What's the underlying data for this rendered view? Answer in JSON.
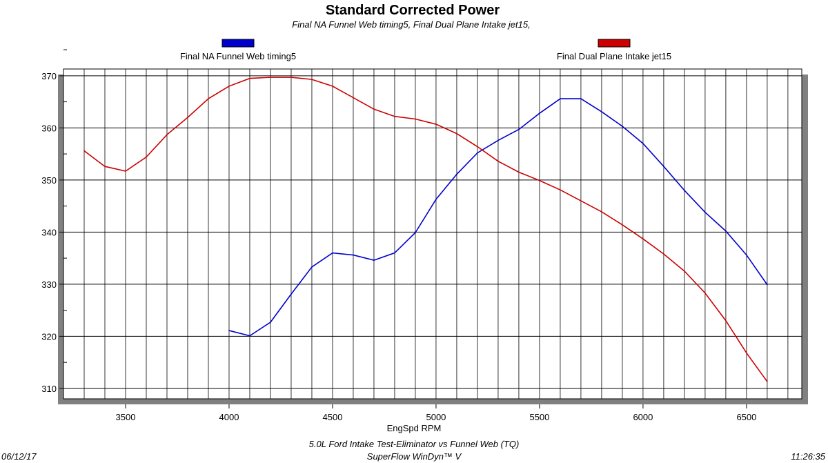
{
  "chart_data": {
    "type": "line",
    "title": "Standard Corrected Power",
    "subtitle": "Final NA Funnel Web timing5, Final Dual Plane Intake jet15,",
    "xlabel": "EngSpd RPM",
    "ylabel": "",
    "xlim": [
      3200,
      6767
    ],
    "ylim": [
      308,
      371.3
    ],
    "xticks": [
      3500,
      4000,
      4500,
      5000,
      5500,
      6000,
      6500
    ],
    "yticks": [
      310,
      320,
      330,
      340,
      350,
      360,
      370
    ],
    "grid": true,
    "legend_placement": "top",
    "series": [
      {
        "name": "Final NA Funnel Web timing5",
        "color": "#0000cc",
        "x": [
          4000,
          4100,
          4200,
          4300,
          4400,
          4500,
          4600,
          4700,
          4800,
          4900,
          5000,
          5100,
          5200,
          5300,
          5400,
          5500,
          5600,
          5700,
          5800,
          5900,
          6000,
          6100,
          6200,
          6300,
          6400,
          6500,
          6600
        ],
        "y": [
          321.1,
          320.1,
          322.7,
          328.1,
          333.3,
          336.0,
          335.6,
          334.6,
          336.0,
          339.9,
          346.3,
          351.1,
          355.2,
          357.6,
          359.7,
          362.8,
          365.6,
          365.6,
          363.1,
          360.3,
          357.0,
          352.6,
          348.0,
          343.8,
          340.2,
          335.6,
          329.9
        ]
      },
      {
        "name": "Final Dual Plane Intake jet15",
        "color": "#cc0000",
        "x": [
          3300,
          3400,
          3500,
          3600,
          3700,
          3800,
          3900,
          4000,
          4100,
          4200,
          4300,
          4400,
          4500,
          4600,
          4700,
          4800,
          4900,
          5000,
          5100,
          5200,
          5300,
          5400,
          5500,
          5600,
          5700,
          5800,
          5900,
          6000,
          6100,
          6200,
          6300,
          6400,
          6500,
          6600
        ],
        "y": [
          355.6,
          352.6,
          351.7,
          354.4,
          358.7,
          362.0,
          365.6,
          368.0,
          369.5,
          369.7,
          369.7,
          369.3,
          368.0,
          365.8,
          363.6,
          362.2,
          361.7,
          360.7,
          358.9,
          356.4,
          353.6,
          351.5,
          349.9,
          348.1,
          346.0,
          343.9,
          341.4,
          338.7,
          335.8,
          332.5,
          328.3,
          323.0,
          316.8,
          311.3
        ]
      }
    ]
  },
  "footer": {
    "description": "5.0L Ford Intake Test-Eliminator vs Funnel Web (TQ)",
    "software": "SuperFlow WinDyn™ V",
    "date": "06/12/17",
    "time": "11:26:35"
  }
}
